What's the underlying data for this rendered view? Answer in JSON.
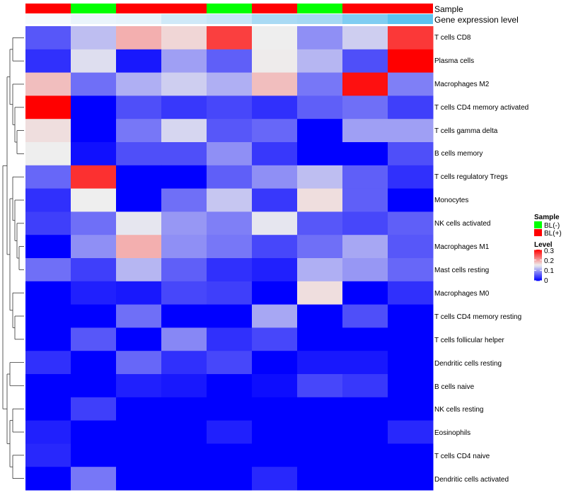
{
  "chart_data": {
    "type": "heatmap",
    "annotation_rows": [
      {
        "name": "Sample",
        "values": [
          "BL(+)",
          "BL(-)",
          "BL(+)",
          "BL(+)",
          "BL(-)",
          "BL(+)",
          "BL(-)",
          "BL(+)",
          "BL(+)"
        ]
      },
      {
        "name": "Gene expression level",
        "colors": [
          "#f6fafd",
          "#eaf4fb",
          "#e6f3fb",
          "#cfe9f8",
          "#c6e6f7",
          "#a9daf4",
          "#a4d8f3",
          "#7fcdf2",
          "#5cc2f0"
        ]
      }
    ],
    "rows": [
      "T cells CD8",
      "Plasma cells",
      "Macrophages M2",
      "T cells CD4 memory activated",
      "T cells gamma delta",
      "B cells memory",
      "T cells regulatory  Tregs",
      "Monocytes",
      "NK cells activated",
      "Macrophages M1",
      "Mast cells resting",
      "Macrophages M0",
      "T cells CD4 memory resting",
      "T cells follicular helper",
      "Dendritic cells resting",
      "B cells naive",
      "NK cells resting",
      "Eosinophils",
      "T cells CD4 naive",
      "Dendritic cells activated"
    ],
    "n_columns": 9,
    "values": [
      [
        0.055,
        0.12,
        0.19,
        0.165,
        0.26,
        0.15,
        0.09,
        0.13,
        0.265
      ],
      [
        0.03,
        0.14,
        0.015,
        0.1,
        0.06,
        0.152,
        0.115,
        0.05,
        0.3
      ],
      [
        0.18,
        0.07,
        0.11,
        0.13,
        0.11,
        0.18,
        0.075,
        0.29,
        0.08
      ],
      [
        0.3,
        0.0,
        0.05,
        0.035,
        0.045,
        0.03,
        0.06,
        0.07,
        0.04
      ],
      [
        0.16,
        0.0,
        0.075,
        0.135,
        0.055,
        0.065,
        0.0,
        0.1,
        0.1
      ],
      [
        0.15,
        0.01,
        0.05,
        0.05,
        0.09,
        0.035,
        0.0,
        0.0,
        0.05
      ],
      [
        0.065,
        0.27,
        0.0,
        0.0,
        0.06,
        0.09,
        0.12,
        0.06,
        0.03
      ],
      [
        0.03,
        0.15,
        0.0,
        0.07,
        0.125,
        0.035,
        0.16,
        0.06,
        0.0
      ],
      [
        0.04,
        0.07,
        0.145,
        0.095,
        0.08,
        0.145,
        0.055,
        0.045,
        0.06
      ],
      [
        0.0,
        0.09,
        0.19,
        0.09,
        0.075,
        0.045,
        0.07,
        0.105,
        0.055
      ],
      [
        0.07,
        0.04,
        0.115,
        0.06,
        0.03,
        0.02,
        0.11,
        0.095,
        0.065
      ],
      [
        0.0,
        0.02,
        0.015,
        0.045,
        0.04,
        0.0,
        0.16,
        0.0,
        0.03
      ],
      [
        0.0,
        0.0,
        0.07,
        0.0,
        0.0,
        0.105,
        0.0,
        0.05,
        0.0
      ],
      [
        0.0,
        0.055,
        0.0,
        0.085,
        0.03,
        0.045,
        0.0,
        0.0,
        0.0
      ],
      [
        0.03,
        0.0,
        0.065,
        0.03,
        0.045,
        0.0,
        0.015,
        0.015,
        0.0
      ],
      [
        0.0,
        0.0,
        0.02,
        0.015,
        0.0,
        0.008,
        0.045,
        0.035,
        0.0
      ],
      [
        0.0,
        0.04,
        0.0,
        0.0,
        0.0,
        0.0,
        0.0,
        0.0,
        0.0
      ],
      [
        0.02,
        0.0,
        0.0,
        0.0,
        0.02,
        0.0,
        0.0,
        0.0,
        0.025
      ],
      [
        0.025,
        0.0,
        0.0,
        0.0,
        0.0,
        0.0,
        0.0,
        0.0,
        0.0
      ],
      [
        0.0,
        0.075,
        0.0,
        0.0,
        0.0,
        0.025,
        0.0,
        0.0,
        0.0
      ]
    ],
    "color_scale": {
      "range": [
        0,
        0.3
      ],
      "stops": [
        "#0000ff",
        "#eeeeee",
        "#ff0000"
      ],
      "midpoint": 0.15
    },
    "legend": [
      {
        "title": "Sample",
        "entries": [
          {
            "label": "BL(-)",
            "color": "#00ff00"
          },
          {
            "label": "BL(+)",
            "color": "#ff0000"
          }
        ]
      },
      {
        "title": "Level",
        "ticks": [
          "0.3",
          "0.2",
          "0.1",
          "0"
        ],
        "tick_values": [
          0.3,
          0.2,
          0.1,
          0
        ]
      }
    ],
    "row_dendrogram": true,
    "legend_position": "right"
  }
}
